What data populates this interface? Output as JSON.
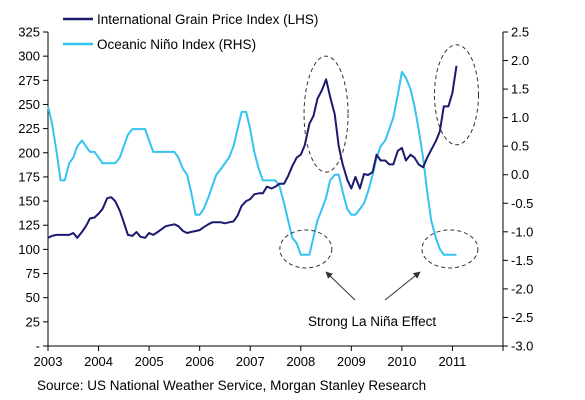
{
  "chart_data": {
    "type": "line",
    "x_ticks": [
      "2003",
      "2004",
      "2005",
      "2006",
      "2007",
      "2008",
      "2009",
      "2010",
      "2011"
    ],
    "y_left_ticks": [
      "325",
      "300",
      "275",
      "250",
      "225",
      "200",
      "175",
      "150",
      "125",
      "100",
      "75",
      "50",
      "25",
      "-"
    ],
    "y_right_ticks": [
      "2.5",
      "2.0",
      "1.5",
      "1.0",
      "0.5",
      "0.0",
      "-0.5",
      "-1.0",
      "-1.5",
      "-2.0",
      "-2.5",
      "-3.0"
    ],
    "ylim_left": [
      0,
      325
    ],
    "ylim_right": [
      -3.0,
      2.5
    ],
    "xlim": [
      2003,
      2012
    ],
    "series": [
      {
        "name": "International Grain Price Index (LHS)",
        "axis": "left",
        "color": "#1a1a6e",
        "points": [
          [
            2003.0,
            112
          ],
          [
            2003.08,
            114
          ],
          [
            2003.17,
            115
          ],
          [
            2003.25,
            115
          ],
          [
            2003.33,
            115
          ],
          [
            2003.42,
            115
          ],
          [
            2003.5,
            117
          ],
          [
            2003.58,
            112
          ],
          [
            2003.67,
            118
          ],
          [
            2003.75,
            124
          ],
          [
            2003.83,
            132
          ],
          [
            2003.92,
            133
          ],
          [
            2004.0,
            137
          ],
          [
            2004.08,
            142
          ],
          [
            2004.17,
            153
          ],
          [
            2004.25,
            154
          ],
          [
            2004.33,
            150
          ],
          [
            2004.42,
            140
          ],
          [
            2004.5,
            128
          ],
          [
            2004.58,
            115
          ],
          [
            2004.67,
            114
          ],
          [
            2004.75,
            118
          ],
          [
            2004.83,
            113
          ],
          [
            2004.92,
            112
          ],
          [
            2005.0,
            117
          ],
          [
            2005.08,
            115
          ],
          [
            2005.17,
            118
          ],
          [
            2005.25,
            121
          ],
          [
            2005.33,
            124
          ],
          [
            2005.42,
            125
          ],
          [
            2005.5,
            126
          ],
          [
            2005.58,
            124
          ],
          [
            2005.67,
            119
          ],
          [
            2005.75,
            117
          ],
          [
            2005.83,
            118
          ],
          [
            2005.92,
            119
          ],
          [
            2006.0,
            120
          ],
          [
            2006.08,
            123
          ],
          [
            2006.17,
            126
          ],
          [
            2006.25,
            128
          ],
          [
            2006.33,
            128
          ],
          [
            2006.42,
            128
          ],
          [
            2006.5,
            127
          ],
          [
            2006.58,
            128
          ],
          [
            2006.67,
            129
          ],
          [
            2006.75,
            135
          ],
          [
            2006.83,
            145
          ],
          [
            2006.92,
            150
          ],
          [
            2007.0,
            152
          ],
          [
            2007.08,
            157
          ],
          [
            2007.17,
            158
          ],
          [
            2007.25,
            158
          ],
          [
            2007.33,
            165
          ],
          [
            2007.42,
            163
          ],
          [
            2007.5,
            165
          ],
          [
            2007.58,
            168
          ],
          [
            2007.67,
            168
          ],
          [
            2007.75,
            176
          ],
          [
            2007.83,
            186
          ],
          [
            2007.92,
            195
          ],
          [
            2008.0,
            198
          ],
          [
            2008.08,
            208
          ],
          [
            2008.17,
            230
          ],
          [
            2008.25,
            238
          ],
          [
            2008.33,
            256
          ],
          [
            2008.42,
            265
          ],
          [
            2008.5,
            276
          ],
          [
            2008.58,
            258
          ],
          [
            2008.67,
            240
          ],
          [
            2008.75,
            207
          ],
          [
            2008.83,
            188
          ],
          [
            2008.92,
            172
          ],
          [
            2009.0,
            163
          ],
          [
            2009.08,
            175
          ],
          [
            2009.17,
            163
          ],
          [
            2009.25,
            178
          ],
          [
            2009.33,
            177
          ],
          [
            2009.42,
            180
          ],
          [
            2009.5,
            198
          ],
          [
            2009.58,
            192
          ],
          [
            2009.67,
            192
          ],
          [
            2009.75,
            188
          ],
          [
            2009.83,
            188
          ],
          [
            2009.92,
            202
          ],
          [
            2010.0,
            205
          ],
          [
            2010.08,
            192
          ],
          [
            2010.17,
            198
          ],
          [
            2010.25,
            195
          ],
          [
            2010.33,
            188
          ],
          [
            2010.42,
            185
          ],
          [
            2010.5,
            195
          ],
          [
            2010.58,
            203
          ],
          [
            2010.67,
            212
          ],
          [
            2010.75,
            222
          ],
          [
            2010.83,
            248
          ],
          [
            2010.92,
            248
          ],
          [
            2011.0,
            262
          ],
          [
            2011.08,
            290
          ]
        ]
      },
      {
        "name": "Oceanic Niño Index (RHS)",
        "axis": "right",
        "color": "#35c3f0",
        "points": [
          [
            2003.0,
            1.2
          ],
          [
            2003.08,
            0.9
          ],
          [
            2003.17,
            0.4
          ],
          [
            2003.25,
            -0.1
          ],
          [
            2003.33,
            -0.1
          ],
          [
            2003.42,
            0.2
          ],
          [
            2003.5,
            0.3
          ],
          [
            2003.58,
            0.5
          ],
          [
            2003.67,
            0.6
          ],
          [
            2003.75,
            0.5
          ],
          [
            2003.83,
            0.4
          ],
          [
            2003.92,
            0.4
          ],
          [
            2004.0,
            0.3
          ],
          [
            2004.08,
            0.2
          ],
          [
            2004.17,
            0.2
          ],
          [
            2004.25,
            0.2
          ],
          [
            2004.33,
            0.2
          ],
          [
            2004.42,
            0.3
          ],
          [
            2004.5,
            0.5
          ],
          [
            2004.58,
            0.7
          ],
          [
            2004.67,
            0.8
          ],
          [
            2004.75,
            0.8
          ],
          [
            2004.83,
            0.8
          ],
          [
            2004.92,
            0.8
          ],
          [
            2005.0,
            0.6
          ],
          [
            2005.08,
            0.4
          ],
          [
            2005.17,
            0.4
          ],
          [
            2005.25,
            0.4
          ],
          [
            2005.33,
            0.4
          ],
          [
            2005.42,
            0.4
          ],
          [
            2005.5,
            0.4
          ],
          [
            2005.58,
            0.3
          ],
          [
            2005.67,
            0.1
          ],
          [
            2005.75,
            0.0
          ],
          [
            2005.83,
            -0.3
          ],
          [
            2005.92,
            -0.7
          ],
          [
            2006.0,
            -0.7
          ],
          [
            2006.08,
            -0.6
          ],
          [
            2006.17,
            -0.4
          ],
          [
            2006.25,
            -0.2
          ],
          [
            2006.33,
            0.0
          ],
          [
            2006.42,
            0.1
          ],
          [
            2006.5,
            0.2
          ],
          [
            2006.58,
            0.3
          ],
          [
            2006.67,
            0.5
          ],
          [
            2006.75,
            0.8
          ],
          [
            2006.83,
            1.1
          ],
          [
            2006.92,
            1.1
          ],
          [
            2007.0,
            0.8
          ],
          [
            2007.08,
            0.4
          ],
          [
            2007.17,
            0.1
          ],
          [
            2007.25,
            -0.1
          ],
          [
            2007.33,
            -0.1
          ],
          [
            2007.42,
            -0.1
          ],
          [
            2007.5,
            -0.1
          ],
          [
            2007.58,
            -0.2
          ],
          [
            2007.67,
            -0.5
          ],
          [
            2007.75,
            -0.8
          ],
          [
            2007.83,
            -1.1
          ],
          [
            2007.92,
            -1.2
          ],
          [
            2008.0,
            -1.4
          ],
          [
            2008.08,
            -1.4
          ],
          [
            2008.17,
            -1.4
          ],
          [
            2008.25,
            -1.1
          ],
          [
            2008.33,
            -0.8
          ],
          [
            2008.42,
            -0.6
          ],
          [
            2008.5,
            -0.4
          ],
          [
            2008.58,
            -0.1
          ],
          [
            2008.67,
            0.0
          ],
          [
            2008.75,
            0.0
          ],
          [
            2008.83,
            -0.3
          ],
          [
            2008.92,
            -0.6
          ],
          [
            2009.0,
            -0.7
          ],
          [
            2009.08,
            -0.7
          ],
          [
            2009.17,
            -0.6
          ],
          [
            2009.25,
            -0.5
          ],
          [
            2009.33,
            -0.3
          ],
          [
            2009.42,
            0.0
          ],
          [
            2009.5,
            0.3
          ],
          [
            2009.58,
            0.5
          ],
          [
            2009.67,
            0.6
          ],
          [
            2009.75,
            0.8
          ],
          [
            2009.83,
            1.0
          ],
          [
            2009.92,
            1.4
          ],
          [
            2010.0,
            1.8
          ],
          [
            2010.08,
            1.7
          ],
          [
            2010.17,
            1.5
          ],
          [
            2010.25,
            1.2
          ],
          [
            2010.33,
            0.8
          ],
          [
            2010.42,
            0.3
          ],
          [
            2010.5,
            -0.3
          ],
          [
            2010.58,
            -0.8
          ],
          [
            2010.67,
            -1.1
          ],
          [
            2010.75,
            -1.3
          ],
          [
            2010.83,
            -1.4
          ],
          [
            2010.92,
            -1.4
          ],
          [
            2011.0,
            -1.4
          ],
          [
            2011.08,
            -1.4
          ]
        ]
      }
    ],
    "annotations": [
      {
        "label": "Strong La Niña Effect",
        "targets": [
          "la-nina-2008",
          "la-nina-2011"
        ]
      }
    ],
    "grid": false,
    "legend_placement": "top-left"
  },
  "source": "Source: US National Weather Service, Morgan Stanley Research",
  "highlights": {
    "peak_2008": {
      "x": 2008.5,
      "y_left": 240
    },
    "peak_2011": {
      "x": 2011.08,
      "y_left": 260
    },
    "la_nina_2008": {
      "x": 2008.1,
      "y_right": -1.3
    },
    "la_nina_2011": {
      "x": 2010.95,
      "y_right": -1.3
    }
  }
}
